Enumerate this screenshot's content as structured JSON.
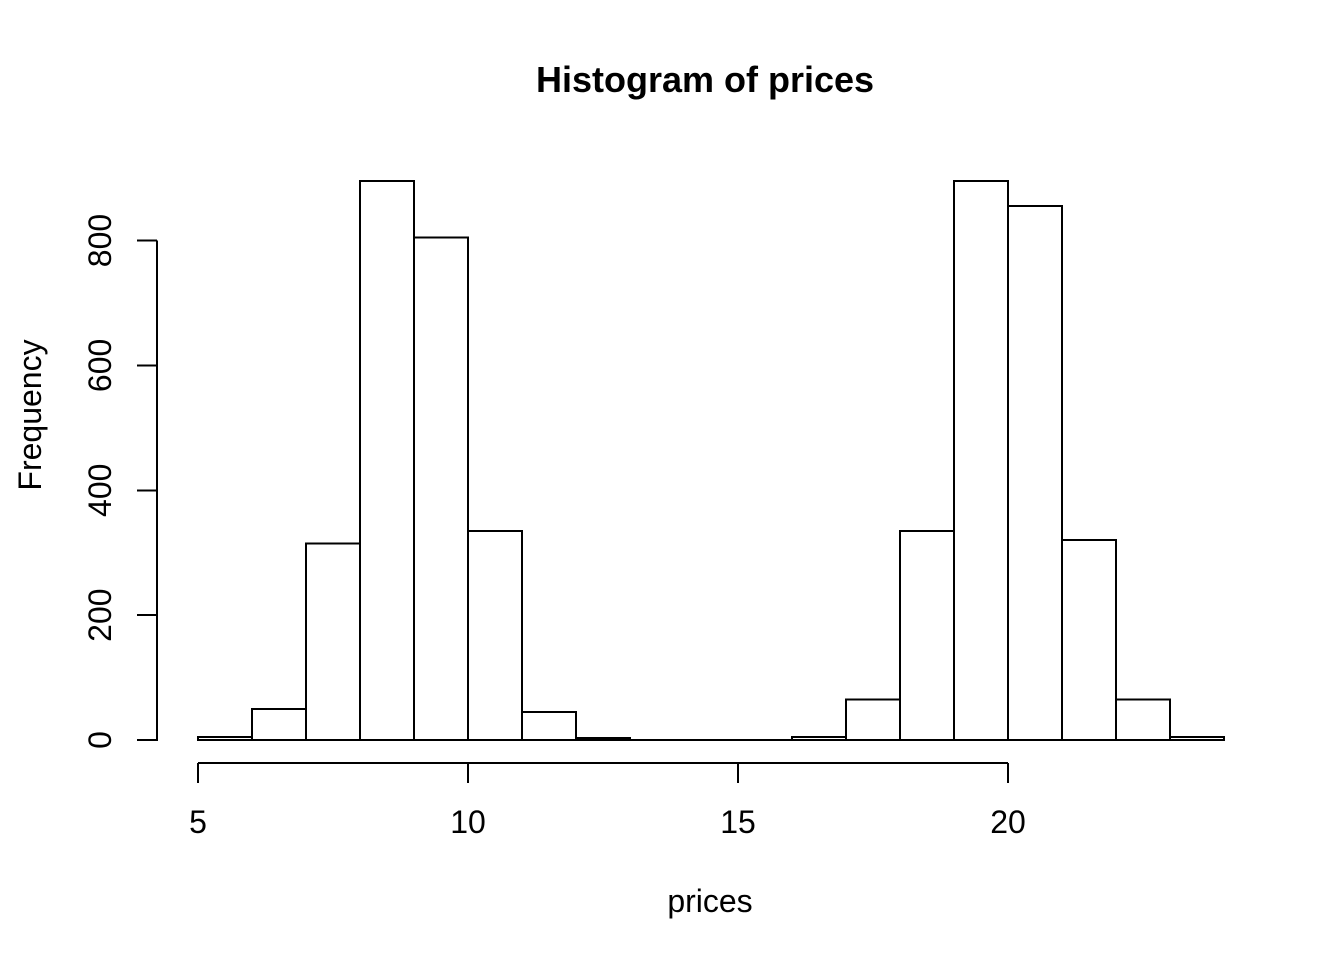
{
  "figure": {
    "background": "#ffffff"
  },
  "colors": {
    "stroke": "#000000",
    "bar_fill": "#ffffff",
    "text": "#000000",
    "background": "#ffffff"
  },
  "chart_data": {
    "type": "bar",
    "subtype": "histogram",
    "title": "Histogram of prices",
    "xlabel": "prices",
    "ylabel": "Frequency",
    "bin_start": 5,
    "bin_width": 1,
    "bin_edges": [
      5,
      6,
      7,
      8,
      9,
      10,
      11,
      12,
      13,
      14,
      15,
      16,
      17,
      18,
      19,
      20,
      21,
      22,
      23,
      24
    ],
    "counts": [
      5,
      50,
      315,
      895,
      805,
      335,
      45,
      3,
      0,
      0,
      0,
      5,
      65,
      335,
      895,
      855,
      320,
      65,
      5
    ],
    "x_ticks": [
      5,
      10,
      15,
      20
    ],
    "y_ticks": [
      0,
      200,
      400,
      600,
      800
    ],
    "xlim": [
      5,
      24
    ],
    "ylim": [
      0,
      800
    ],
    "grid": false,
    "legend": false,
    "bar_fill": "#ffffff",
    "bar_stroke": "#000000"
  }
}
